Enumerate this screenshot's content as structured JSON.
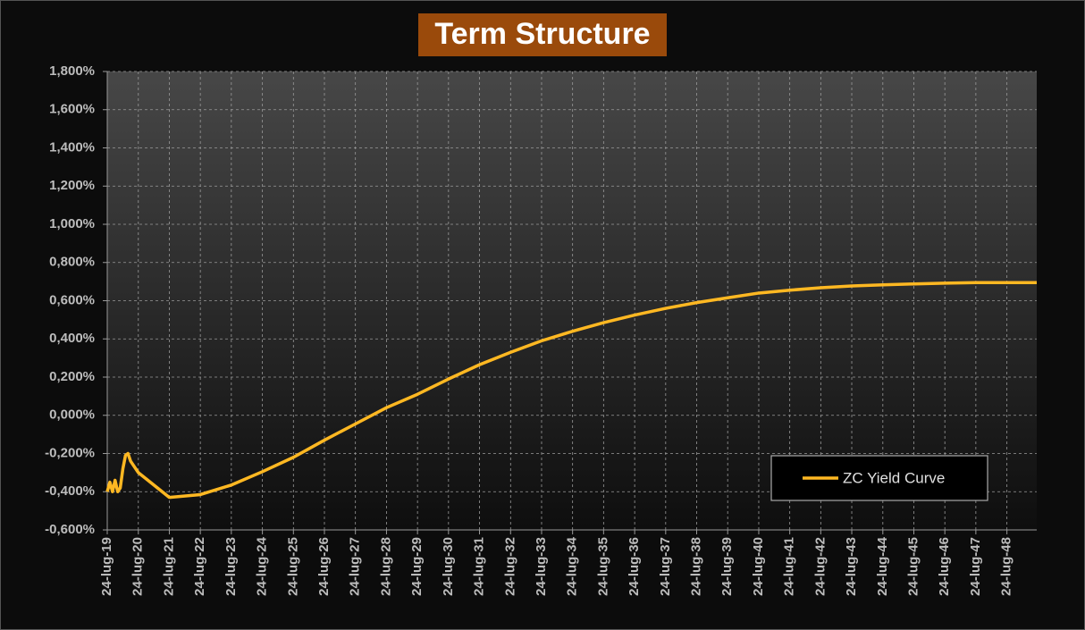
{
  "chart_data": {
    "type": "line",
    "title": "Term Structure",
    "x": [
      "2019-07-24",
      "2019-08-24",
      "2019-09-24",
      "2019-10-24",
      "2019-11-24",
      "2019-12-24",
      "2020-01-24",
      "2020-02-24",
      "2020-03-24",
      "2020-04-24",
      "2020-07-24",
      "2021-07-24",
      "2022-07-24",
      "2023-07-24",
      "2024-07-24",
      "2025-07-24",
      "2026-07-24",
      "2027-07-24",
      "2028-07-24",
      "2029-07-24",
      "2030-07-24",
      "2031-07-24",
      "2032-07-24",
      "2033-07-24",
      "2034-07-24",
      "2035-07-24",
      "2036-07-24",
      "2037-07-24",
      "2038-07-24",
      "2039-07-24",
      "2040-07-24",
      "2041-07-24",
      "2042-07-24",
      "2043-07-24",
      "2044-07-24",
      "2045-07-24",
      "2046-07-24",
      "2047-07-24",
      "2048-07-24",
      "2049-07-10"
    ],
    "series": [
      {
        "name": "ZC Yield Curve",
        "color": "#ffb822",
        "values": [
          -0.4,
          -0.35,
          -0.4,
          -0.34,
          -0.4,
          -0.38,
          -0.28,
          -0.21,
          -0.2,
          -0.24,
          -0.3,
          -0.43,
          -0.415,
          -0.365,
          -0.295,
          -0.22,
          -0.13,
          -0.045,
          0.04,
          0.11,
          0.19,
          0.265,
          0.33,
          0.39,
          0.44,
          0.485,
          0.525,
          0.56,
          0.59,
          0.615,
          0.64,
          0.655,
          0.668,
          0.677,
          0.683,
          0.688,
          0.692,
          0.695,
          0.695,
          0.695
        ]
      }
    ],
    "xlim": [
      "2019-07-24",
      "2049-07-10"
    ],
    "xticks": [
      {
        "value": "2019-07-24",
        "label": "24-lug-19"
      },
      {
        "value": "2020-07-24",
        "label": "24-lug-20"
      },
      {
        "value": "2021-07-24",
        "label": "24-lug-21"
      },
      {
        "value": "2022-07-24",
        "label": "24-lug-22"
      },
      {
        "value": "2023-07-24",
        "label": "24-lug-23"
      },
      {
        "value": "2024-07-24",
        "label": "24-lug-24"
      },
      {
        "value": "2025-07-24",
        "label": "24-lug-25"
      },
      {
        "value": "2026-07-24",
        "label": "24-lug-26"
      },
      {
        "value": "2027-07-24",
        "label": "24-lug-27"
      },
      {
        "value": "2028-07-24",
        "label": "24-lug-28"
      },
      {
        "value": "2029-07-24",
        "label": "24-lug-29"
      },
      {
        "value": "2030-07-24",
        "label": "24-lug-30"
      },
      {
        "value": "2031-07-24",
        "label": "24-lug-31"
      },
      {
        "value": "2032-07-24",
        "label": "24-lug-32"
      },
      {
        "value": "2033-07-24",
        "label": "24-lug-33"
      },
      {
        "value": "2034-07-24",
        "label": "24-lug-34"
      },
      {
        "value": "2035-07-24",
        "label": "24-lug-35"
      },
      {
        "value": "2036-07-24",
        "label": "24-lug-36"
      },
      {
        "value": "2037-07-24",
        "label": "24-lug-37"
      },
      {
        "value": "2038-07-24",
        "label": "24-lug-38"
      },
      {
        "value": "2039-07-24",
        "label": "24-lug-39"
      },
      {
        "value": "2040-07-24",
        "label": "24-lug-40"
      },
      {
        "value": "2041-07-24",
        "label": "24-lug-41"
      },
      {
        "value": "2042-07-24",
        "label": "24-lug-42"
      },
      {
        "value": "2043-07-24",
        "label": "24-lug-43"
      },
      {
        "value": "2044-07-24",
        "label": "24-lug-44"
      },
      {
        "value": "2045-07-24",
        "label": "24-lug-45"
      },
      {
        "value": "2046-07-24",
        "label": "24-lug-46"
      },
      {
        "value": "2047-07-24",
        "label": "24-lug-47"
      },
      {
        "value": "2048-07-24",
        "label": "24-lug-48"
      }
    ],
    "ylim": [
      -0.6,
      1.8
    ],
    "yticks": [
      {
        "value": -0.6,
        "label": "-0,600%"
      },
      {
        "value": -0.4,
        "label": "-0,400%"
      },
      {
        "value": -0.2,
        "label": "-0,200%"
      },
      {
        "value": 0,
        "label": "0,000%"
      },
      {
        "value": 0.2,
        "label": "0,200%"
      },
      {
        "value": 0.4,
        "label": "0,400%"
      },
      {
        "value": 0.6,
        "label": "0,600%"
      },
      {
        "value": 0.8,
        "label": "0,800%"
      },
      {
        "value": 1.0,
        "label": "1,000%"
      },
      {
        "value": 1.2,
        "label": "1,200%"
      },
      {
        "value": 1.4,
        "label": "1,400%"
      },
      {
        "value": 1.6,
        "label": "1,600%"
      },
      {
        "value": 1.8,
        "label": "1,800%"
      }
    ],
    "grid": true,
    "legend": "lower right"
  }
}
